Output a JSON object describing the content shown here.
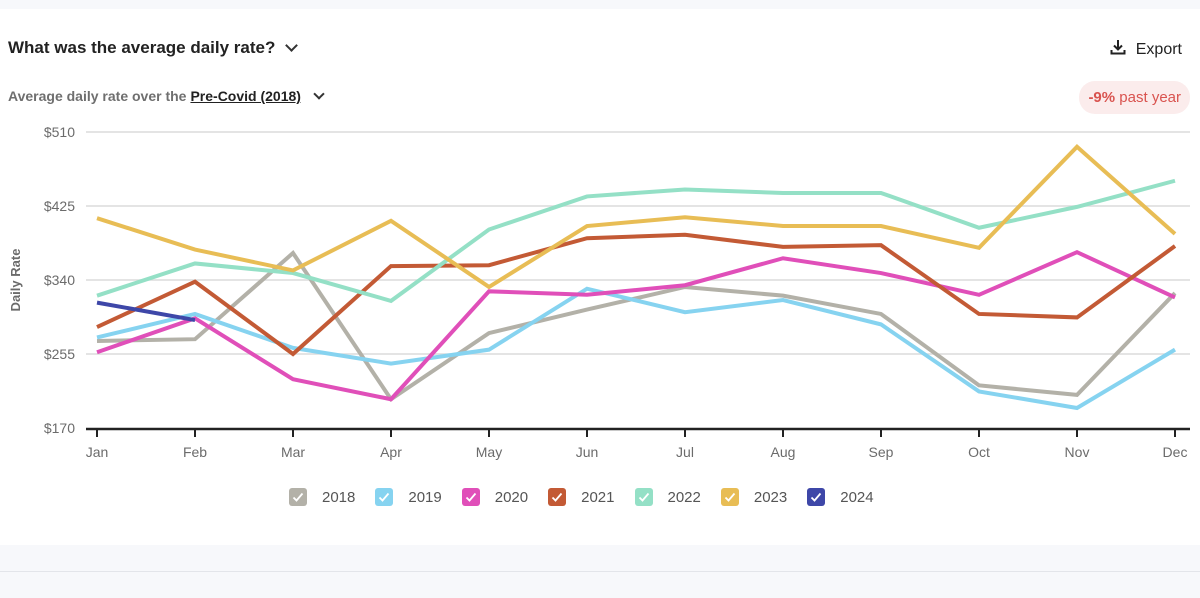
{
  "header": {
    "title": "What was the average daily rate?",
    "subtitle_prefix": "Average daily rate over the",
    "period": "Pre-Covid (2018)",
    "export_label": "Export",
    "badge_value": "-9%",
    "badge_text": "past year"
  },
  "colors": {
    "badge_bg": "#fbecec",
    "badge_fg": "#d9534f"
  },
  "chart_data": {
    "type": "line",
    "title": "What was the average daily rate?",
    "xlabel": "",
    "ylabel": "Daily Rate",
    "ylim": [
      170,
      510
    ],
    "yticks": [
      170,
      255,
      340,
      425,
      510
    ],
    "ytick_labels": [
      "$170",
      "$255",
      "$340",
      "$425",
      "$510"
    ],
    "grid": true,
    "legend_position": "bottom",
    "categories": [
      "Jan",
      "Feb",
      "Mar",
      "Apr",
      "May",
      "Jun",
      "Jul",
      "Aug",
      "Sep",
      "Oct",
      "Nov",
      "Dec"
    ],
    "series": [
      {
        "name": "2018",
        "color": "#b3b1a8",
        "values": [
          270,
          272,
          371,
          203,
          279,
          306,
          332,
          322,
          301,
          219,
          208,
          325
        ]
      },
      {
        "name": "2019",
        "color": "#86d3f0",
        "values": [
          274,
          301,
          262,
          244,
          260,
          330,
          303,
          317,
          289,
          212,
          193,
          260
        ]
      },
      {
        "name": "2020",
        "color": "#e04fb9",
        "values": [
          257,
          296,
          226,
          203,
          327,
          323,
          334,
          365,
          348,
          323,
          372,
          320
        ]
      },
      {
        "name": "2021",
        "color": "#c35a35",
        "values": [
          286,
          338,
          255,
          356,
          357,
          388,
          392,
          378,
          380,
          301,
          297,
          379
        ]
      },
      {
        "name": "2022",
        "color": "#94e0c6",
        "values": [
          322,
          359,
          348,
          316,
          398,
          436,
          444,
          440,
          440,
          400,
          424,
          454
        ]
      },
      {
        "name": "2023",
        "color": "#e8bd55",
        "values": [
          411,
          375,
          351,
          408,
          332,
          402,
          412,
          402,
          402,
          377,
          493,
          393
        ]
      },
      {
        "name": "2024",
        "color": "#3e47a8",
        "values": [
          314,
          294
        ]
      }
    ]
  }
}
